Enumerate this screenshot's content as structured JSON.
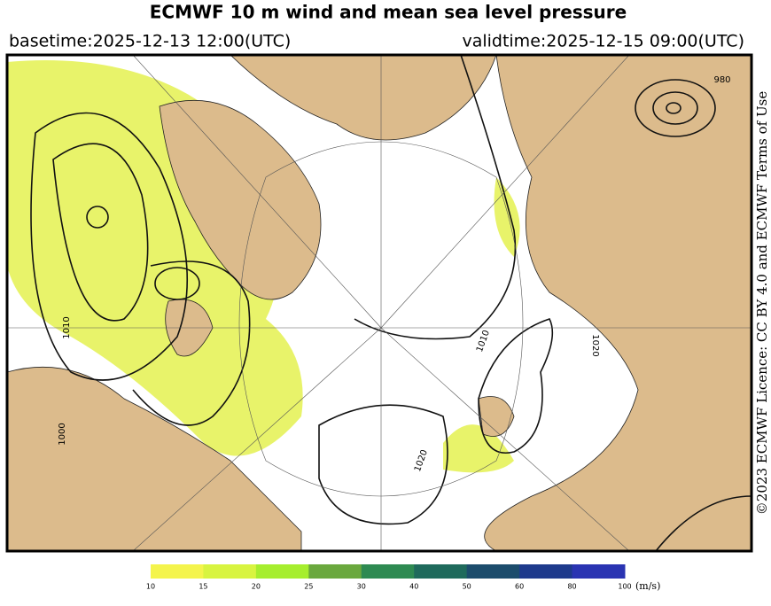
{
  "header": {
    "title": "ECMWF 10 m wind and mean sea level pressure",
    "basetime": "basetime:2025-12-13 12:00(UTC)",
    "validtime": "validtime:2025-12-15 09:00(UTC)"
  },
  "map": {
    "isobar_labels": [
      "1010",
      "1020",
      "1000",
      "1010",
      "1020",
      "980"
    ]
  },
  "legend": {
    "ticks": [
      10,
      15,
      20,
      25,
      30,
      40,
      50,
      60,
      80,
      100
    ],
    "unit": "(m/s)",
    "colors": [
      "#f4f44c",
      "#d8f440",
      "#a6ee2e",
      "#6aa83e",
      "#2e8a52",
      "#1f6a5c",
      "#1c4c6c",
      "#1e3a8c",
      "#2a34b2"
    ]
  },
  "credit": "©2023 ECMWF Licence: CC BY 4.0 and ECMWF Terms of Use"
}
